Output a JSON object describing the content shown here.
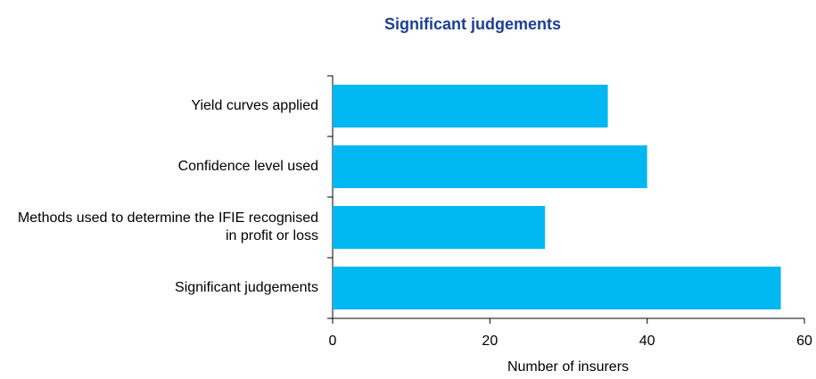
{
  "chart_data": {
    "type": "bar",
    "orientation": "horizontal",
    "title": "Significant judgements",
    "categories": [
      "Yield curves applied",
      "Confidence level used",
      "Methods used to determine the IFIE recognised in profit or loss",
      "Significant judgements"
    ],
    "values": [
      35,
      40,
      27,
      57
    ],
    "color": "#00b8f1",
    "xlabel": "Number of insurers",
    "xlim": [
      0,
      60
    ],
    "xticks": [
      0,
      20,
      40,
      60
    ],
    "grid": false
  }
}
